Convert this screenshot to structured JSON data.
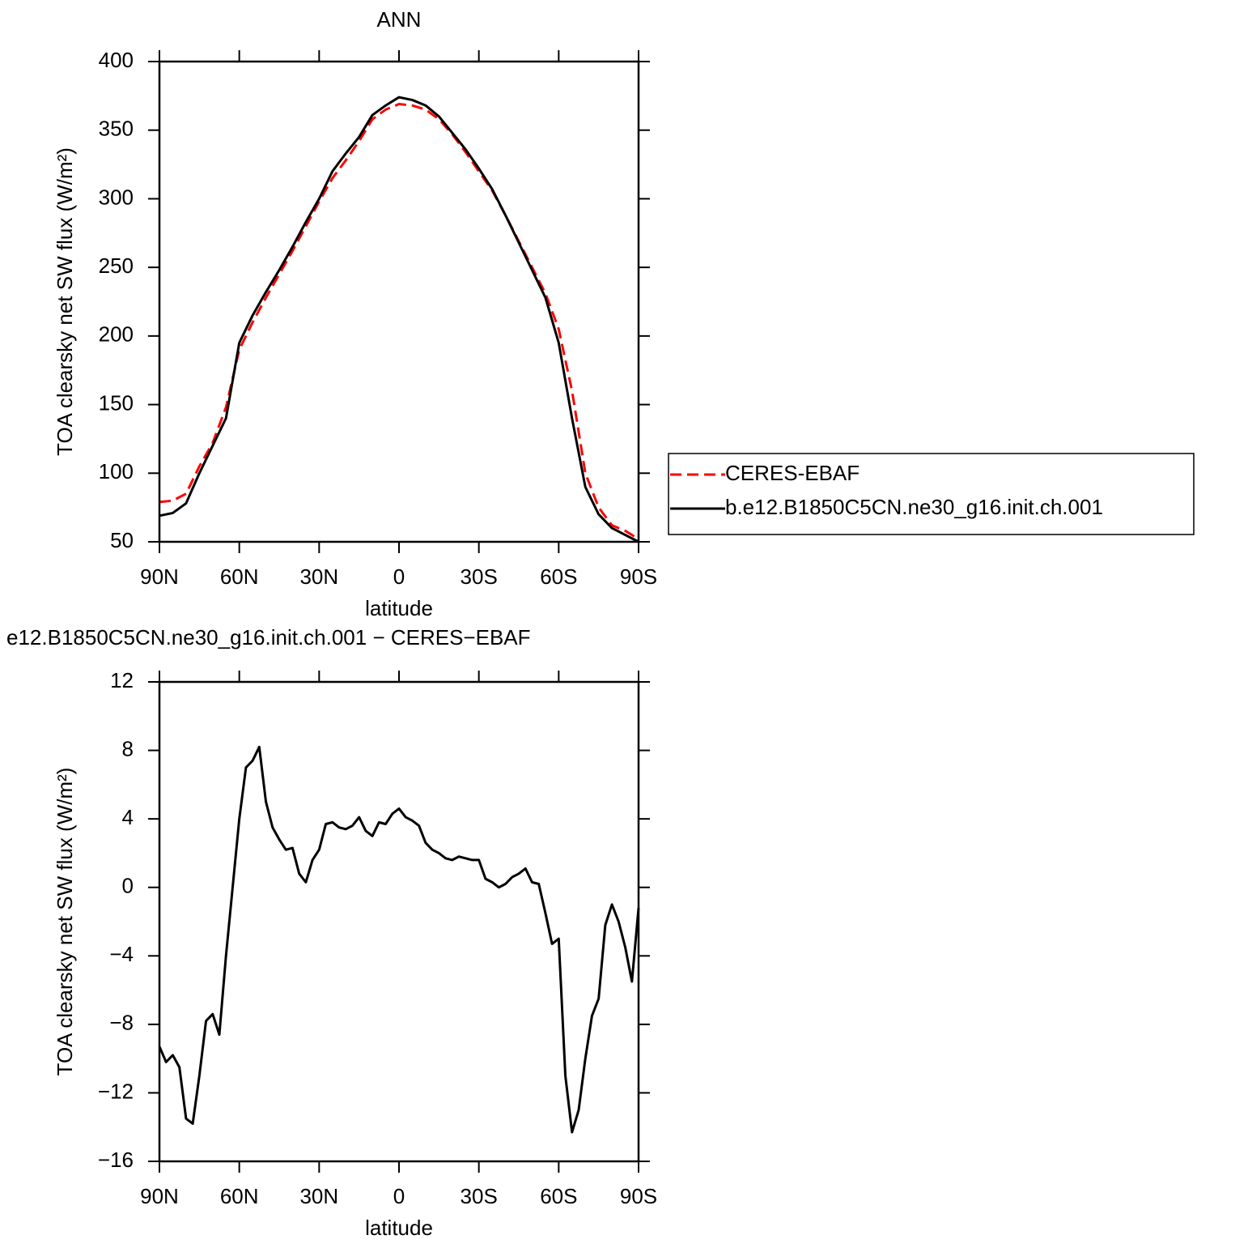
{
  "chart_data": [
    {
      "type": "line",
      "title": "ANN",
      "xlabel": "latitude",
      "ylabel": "TOA clearsky net SW flux (W/m²)",
      "x": [
        90,
        85,
        80,
        75,
        70,
        65,
        60,
        55,
        50,
        45,
        40,
        35,
        30,
        25,
        20,
        15,
        10,
        5,
        0,
        -5,
        -10,
        -15,
        -20,
        -25,
        -30,
        -35,
        -40,
        -45,
        -50,
        -55,
        -60,
        -65,
        -70,
        -75,
        -80,
        -85,
        -90
      ],
      "xlim": [
        90,
        -90
      ],
      "xticks": [
        {
          "value": 90,
          "label": "90N"
        },
        {
          "value": 60,
          "label": "60N"
        },
        {
          "value": 30,
          "label": "30N"
        },
        0,
        {
          "value": -30,
          "label": "30S"
        },
        {
          "value": -60,
          "label": "60S"
        },
        {
          "value": -90,
          "label": "90S"
        }
      ],
      "ylim": [
        50,
        400
      ],
      "yticks": [
        50,
        100,
        150,
        200,
        250,
        300,
        350,
        400
      ],
      "legend": "right",
      "series": [
        {
          "name": "CERES-EBAF",
          "color": "#ff0000",
          "line_style": "dashed",
          "values": [
            79,
            80,
            85,
            105,
            122,
            148,
            190,
            210,
            228,
            245,
            262,
            280,
            298,
            315,
            328,
            342,
            358,
            365,
            369,
            368,
            365,
            358,
            347,
            334,
            320,
            306,
            288,
            269,
            250,
            231,
            205,
            160,
            100,
            75,
            62,
            58,
            52
          ]
        },
        {
          "name": "b.e12.B1850C5CN.ne30_g16.init.ch.001",
          "color": "#000000",
          "line_style": "solid",
          "values": [
            69,
            71,
            78,
            100,
            120,
            140,
            195,
            215,
            232,
            248,
            265,
            283,
            300,
            320,
            333,
            345,
            361,
            368,
            374,
            372,
            368,
            360,
            348,
            336,
            322,
            307,
            288,
            268,
            248,
            228,
            195,
            140,
            90,
            70,
            60,
            55,
            50
          ]
        }
      ]
    },
    {
      "type": "line",
      "title": "e12.B1850C5CN.ne30_g16.init.ch.001 − CERES−EBAF",
      "xlabel": "latitude",
      "ylabel": "TOA clearsky net SW flux (W/m²)",
      "x": [
        90,
        87.5,
        85,
        82.5,
        80,
        77.5,
        75,
        72.5,
        70,
        67.5,
        65,
        62.5,
        60,
        57.5,
        55,
        52.5,
        50,
        47.5,
        45,
        42.5,
        40,
        37.5,
        35,
        32.5,
        30,
        27.5,
        25,
        22.5,
        20,
        17.5,
        15,
        12.5,
        10,
        7.5,
        5,
        2.5,
        0,
        -2.5,
        -5,
        -7.5,
        -10,
        -12.5,
        -15,
        -17.5,
        -20,
        -22.5,
        -25,
        -27.5,
        -30,
        -32.5,
        -35,
        -37.5,
        -40,
        -42.5,
        -45,
        -47.5,
        -50,
        -52.5,
        -55,
        -57.5,
        -60,
        -62.5,
        -65,
        -67.5,
        -70,
        -72.5,
        -75,
        -77.5,
        -80,
        -82.5,
        -85,
        -87.5,
        -90
      ],
      "xlim": [
        90,
        -90
      ],
      "xticks": [
        {
          "value": 90,
          "label": "90N"
        },
        {
          "value": 60,
          "label": "60N"
        },
        {
          "value": 30,
          "label": "30N"
        },
        0,
        {
          "value": -30,
          "label": "30S"
        },
        {
          "value": -60,
          "label": "60S"
        },
        {
          "value": -90,
          "label": "90S"
        }
      ],
      "ylim": [
        -16,
        12
      ],
      "yticks": [
        {
          "value": -16,
          "label": "−16"
        },
        {
          "value": -12,
          "label": "−12"
        },
        {
          "value": -8,
          "label": "−8"
        },
        {
          "value": -4,
          "label": "−4"
        },
        0,
        4,
        8,
        12
      ],
      "series": [
        {
          "color": "#000000",
          "line_style": "solid",
          "values": [
            -9.3,
            -10.2,
            -9.8,
            -10.5,
            -13.5,
            -13.8,
            -11,
            -7.8,
            -7.4,
            -8.6,
            -4,
            0,
            4,
            7,
            7.4,
            8.2,
            5,
            3.5,
            2.8,
            2.2,
            2.3,
            0.8,
            0.3,
            1.6,
            2.2,
            3.7,
            3.8,
            3.5,
            3.4,
            3.6,
            4.1,
            3.3,
            3.0,
            3.8,
            3.7,
            4.3,
            4.6,
            4.1,
            3.9,
            3.6,
            2.6,
            2.2,
            2.0,
            1.7,
            1.6,
            1.8,
            1.7,
            1.6,
            1.6,
            0.5,
            0.3,
            0.0,
            0.2,
            0.6,
            0.8,
            1.1,
            0.3,
            0.2,
            -1.5,
            -3.3,
            -3.0,
            -11,
            -14.3,
            -13,
            -10,
            -7.5,
            -6.5,
            -2.2,
            -1.0,
            -2.0,
            -3.5,
            -5.5,
            -1.2
          ]
        }
      ]
    }
  ]
}
